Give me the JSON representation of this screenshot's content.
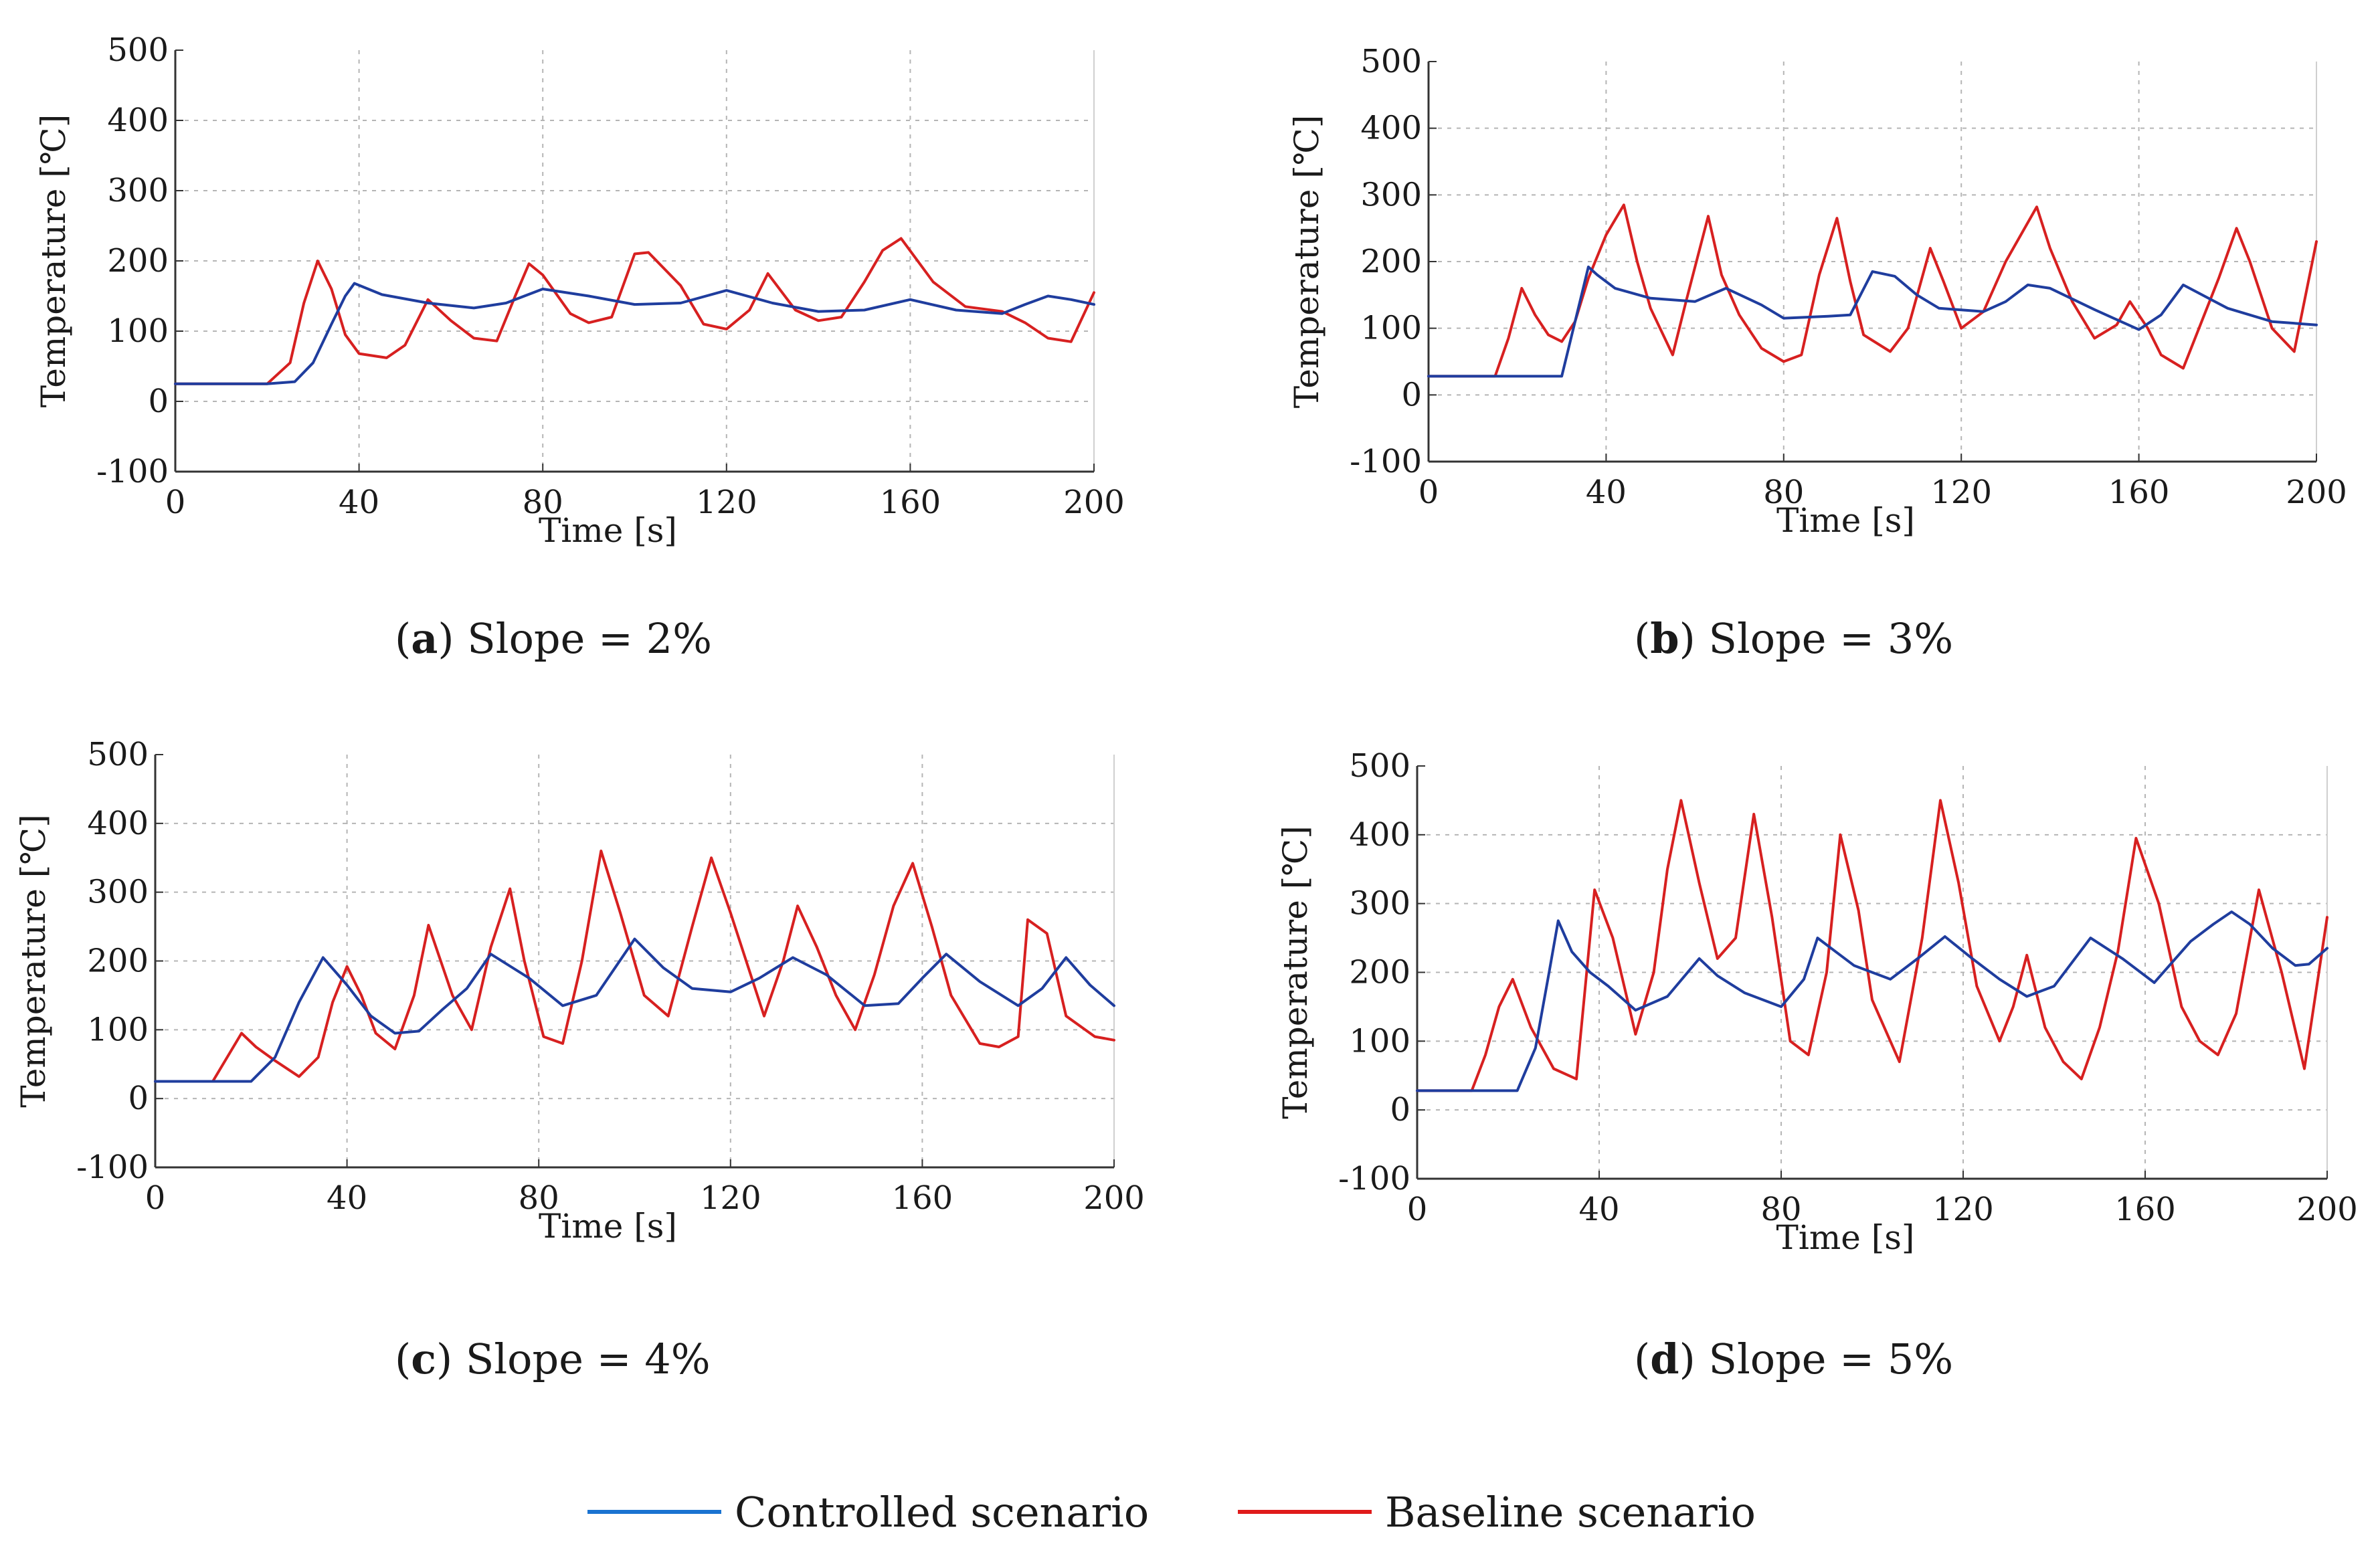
{
  "colors": {
    "controlled": "#1f3d9e",
    "baseline": "#d72020",
    "axis": "#333333",
    "grid": "#b5b5b5"
  },
  "legend": [
    {
      "key": "controlled",
      "label": "Controlled scenario",
      "color": "#1a73d1"
    },
    {
      "key": "baseline",
      "label": "Baseline scenario",
      "color": "#e01b1b"
    }
  ],
  "captions": [
    {
      "letter": "a",
      "text": "Slope = 2%"
    },
    {
      "letter": "b",
      "text": "Slope = 3%"
    },
    {
      "letter": "c",
      "text": "Slope = 4%"
    },
    {
      "letter": "d",
      "text": "Slope = 5%"
    }
  ],
  "chart_data": [
    {
      "type": "line",
      "panel": "a",
      "xlabel": "Time [s]",
      "ylabel": "Temperature [℃]",
      "xlim": [
        0,
        200
      ],
      "ylim": [
        -100,
        500
      ],
      "xticks": [
        0,
        40,
        80,
        120,
        160,
        200
      ],
      "yticks": [
        -100,
        0,
        100,
        200,
        300,
        400,
        500
      ],
      "grid": true,
      "series": [
        {
          "name": "Controlled scenario",
          "x": [
            0,
            20,
            26,
            30,
            34,
            37,
            39,
            45,
            55,
            65,
            72,
            80,
            90,
            100,
            110,
            120,
            130,
            140,
            150,
            160,
            170,
            180,
            185,
            190,
            195,
            200
          ],
          "y": [
            25,
            25,
            28,
            55,
            110,
            150,
            168,
            152,
            140,
            133,
            140,
            160,
            150,
            138,
            140,
            158,
            140,
            128,
            130,
            145,
            130,
            125,
            138,
            150,
            145,
            138
          ]
        },
        {
          "name": "Baseline scenario",
          "x": [
            0,
            20,
            25,
            28,
            31,
            34,
            37,
            40,
            46,
            50,
            55,
            60,
            65,
            70,
            74,
            77,
            80,
            86,
            90,
            95,
            100,
            103,
            110,
            115,
            120,
            125,
            129,
            135,
            140,
            145,
            150,
            154,
            158,
            165,
            172,
            180,
            185,
            190,
            195,
            200
          ],
          "y": [
            25,
            25,
            55,
            140,
            200,
            160,
            95,
            68,
            62,
            80,
            145,
            115,
            90,
            86,
            150,
            196,
            180,
            125,
            112,
            120,
            210,
            212,
            165,
            110,
            103,
            130,
            182,
            130,
            115,
            120,
            170,
            215,
            232,
            170,
            135,
            128,
            112,
            90,
            85,
            155
          ]
        }
      ]
    },
    {
      "type": "line",
      "panel": "b",
      "xlabel": "Time [s]",
      "ylabel": "Temperature [℃]",
      "xlim": [
        0,
        200
      ],
      "ylim": [
        -100,
        500
      ],
      "xticks": [
        0,
        40,
        80,
        120,
        160,
        200
      ],
      "yticks": [
        -100,
        0,
        100,
        200,
        300,
        400,
        500
      ],
      "grid": true,
      "series": [
        {
          "name": "Controlled scenario",
          "x": [
            0,
            30,
            33,
            36,
            38,
            42,
            50,
            60,
            67,
            75,
            80,
            90,
            95,
            100,
            105,
            110,
            115,
            125,
            130,
            135,
            140,
            150,
            160,
            165,
            170,
            180,
            190,
            200
          ],
          "y": [
            28,
            28,
            110,
            192,
            180,
            160,
            145,
            140,
            160,
            135,
            115,
            118,
            120,
            185,
            178,
            150,
            130,
            125,
            140,
            165,
            160,
            128,
            98,
            120,
            165,
            130,
            110,
            105
          ]
        },
        {
          "name": "Baseline scenario",
          "x": [
            0,
            15,
            18,
            21,
            24,
            27,
            30,
            33,
            36,
            40,
            44,
            47,
            50,
            55,
            58,
            63,
            66,
            70,
            75,
            80,
            84,
            88,
            92,
            95,
            98,
            104,
            108,
            113,
            116,
            120,
            125,
            130,
            137,
            140,
            145,
            150,
            155,
            158,
            162,
            165,
            170,
            178,
            182,
            185,
            190,
            195,
            200
          ],
          "y": [
            28,
            28,
            85,
            160,
            120,
            90,
            80,
            110,
            175,
            240,
            285,
            200,
            130,
            60,
            140,
            268,
            180,
            120,
            70,
            50,
            60,
            180,
            265,
            170,
            90,
            65,
            100,
            220,
            170,
            100,
            125,
            200,
            282,
            220,
            140,
            85,
            105,
            140,
            100,
            60,
            40,
            175,
            250,
            200,
            100,
            65,
            230
          ]
        }
      ]
    },
    {
      "type": "line",
      "panel": "c",
      "xlabel": "Time [s]",
      "ylabel": "Temperature [℃]",
      "xlim": [
        0,
        200
      ],
      "ylim": [
        -100,
        500
      ],
      "xticks": [
        0,
        40,
        80,
        120,
        160,
        200
      ],
      "yticks": [
        -100,
        0,
        100,
        200,
        300,
        400,
        500
      ],
      "grid": true,
      "series": [
        {
          "name": "Controlled scenario",
          "x": [
            0,
            20,
            25,
            30,
            35,
            40,
            45,
            50,
            55,
            60,
            65,
            70,
            78,
            85,
            92,
            100,
            106,
            112,
            120,
            126,
            133,
            140,
            148,
            155,
            160,
            165,
            172,
            180,
            185,
            190,
            195,
            200
          ],
          "y": [
            25,
            25,
            60,
            140,
            205,
            165,
            120,
            95,
            98,
            130,
            160,
            210,
            175,
            135,
            150,
            232,
            190,
            160,
            155,
            175,
            205,
            180,
            135,
            138,
            175,
            210,
            170,
            135,
            160,
            205,
            165,
            135
          ]
        },
        {
          "name": "Baseline scenario",
          "x": [
            0,
            12,
            15,
            18,
            21,
            25,
            30,
            34,
            37,
            40,
            43,
            46,
            50,
            54,
            57,
            62,
            66,
            70,
            74,
            77,
            81,
            85,
            89,
            93,
            97,
            102,
            107,
            112,
            116,
            120,
            127,
            131,
            134,
            138,
            142,
            146,
            150,
            154,
            158,
            162,
            166,
            172,
            176,
            180,
            182,
            186,
            190,
            196,
            200
          ],
          "y": [
            25,
            25,
            60,
            95,
            75,
            55,
            32,
            60,
            140,
            192,
            150,
            95,
            72,
            150,
            252,
            150,
            100,
            220,
            305,
            200,
            90,
            80,
            200,
            360,
            270,
            150,
            120,
            250,
            350,
            270,
            120,
            200,
            280,
            220,
            150,
            100,
            180,
            280,
            342,
            250,
            150,
            80,
            75,
            90,
            260,
            240,
            120,
            90,
            85
          ]
        }
      ]
    },
    {
      "type": "line",
      "panel": "d",
      "xlabel": "Time [s]",
      "ylabel": "Temperature [℃]",
      "xlim": [
        0,
        200
      ],
      "ylim": [
        -100,
        500
      ],
      "xticks": [
        0,
        40,
        80,
        120,
        160,
        200
      ],
      "yticks": [
        -100,
        0,
        100,
        200,
        300,
        400,
        500
      ],
      "grid": true,
      "series": [
        {
          "name": "Controlled scenario",
          "x": [
            0,
            22,
            26,
            29,
            31,
            34,
            38,
            42,
            48,
            55,
            62,
            66,
            72,
            80,
            85,
            88,
            92,
            96,
            104,
            110,
            116,
            122,
            128,
            134,
            140,
            148,
            155,
            162,
            170,
            175,
            179,
            183,
            188,
            193,
            196,
            200
          ],
          "y": [
            28,
            28,
            90,
            200,
            275,
            230,
            200,
            180,
            145,
            165,
            220,
            195,
            170,
            150,
            190,
            250,
            230,
            210,
            190,
            220,
            252,
            220,
            190,
            165,
            180,
            250,
            220,
            185,
            245,
            270,
            288,
            270,
            235,
            210,
            212,
            235
          ]
        },
        {
          "name": "Baseline scenario",
          "x": [
            0,
            12,
            15,
            18,
            21,
            25,
            30,
            35,
            39,
            43,
            48,
            52,
            55,
            58,
            62,
            66,
            70,
            74,
            78,
            82,
            86,
            90,
            93,
            97,
            100,
            106,
            111,
            115,
            119,
            123,
            128,
            131,
            134,
            138,
            142,
            146,
            150,
            154,
            158,
            163,
            168,
            172,
            176,
            180,
            185,
            190,
            195,
            200
          ],
          "y": [
            28,
            28,
            80,
            150,
            190,
            120,
            60,
            45,
            320,
            250,
            110,
            200,
            350,
            450,
            330,
            220,
            250,
            430,
            280,
            100,
            80,
            200,
            400,
            290,
            160,
            70,
            250,
            450,
            330,
            180,
            100,
            150,
            225,
            120,
            70,
            45,
            120,
            230,
            395,
            300,
            150,
            100,
            80,
            140,
            320,
            200,
            60,
            280
          ]
        }
      ]
    }
  ]
}
